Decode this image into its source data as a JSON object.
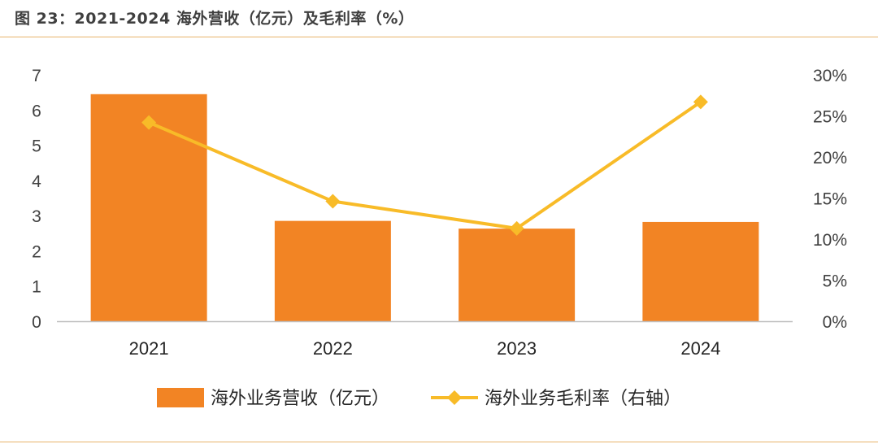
{
  "figure": {
    "title": "图 23：2021-2024 海外营收（亿元）及毛利率（%）"
  },
  "colors": {
    "bar": "#F28424",
    "line": "#F8BB28",
    "rule": "#E8B46C",
    "axis": "#BFBFBF"
  },
  "chart_data": {
    "type": "bar",
    "categories": [
      "2021",
      "2022",
      "2023",
      "2024"
    ],
    "series": [
      {
        "name": "海外业务营收（亿元）",
        "type": "bar",
        "axis": "left",
        "values": [
          6.45,
          2.85,
          2.63,
          2.82
        ]
      },
      {
        "name": "海外业务毛利率（右轴）",
        "type": "line",
        "axis": "right",
        "marker": "diamond",
        "values": [
          24.2,
          14.6,
          11.3,
          26.7
        ]
      }
    ],
    "ylim": [
      0,
      7
    ],
    "yticks": [
      "0",
      "1",
      "2",
      "3",
      "4",
      "5",
      "6",
      "7"
    ],
    "y2lim": [
      0,
      30
    ],
    "y2ticks": [
      "0%",
      "5%",
      "10%",
      "15%",
      "20%",
      "25%",
      "30%"
    ],
    "grid": false,
    "legend": "bottom"
  }
}
